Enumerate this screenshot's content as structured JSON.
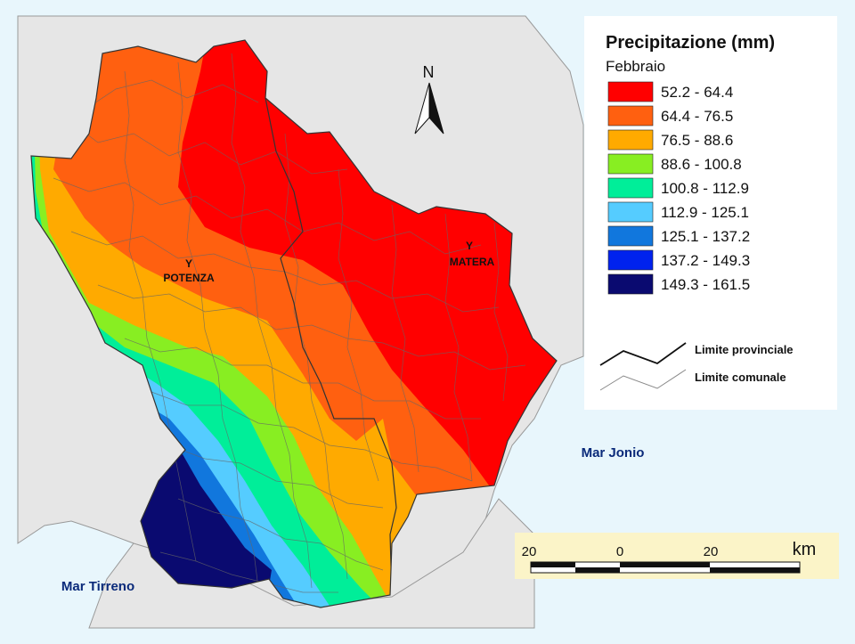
{
  "legend": {
    "title": "Precipitazione (mm)",
    "subtitle": "Febbraio",
    "classes": [
      {
        "label": "52.2 - 64.4",
        "color": "#ff0000"
      },
      {
        "label": "64.4 - 76.5",
        "color": "#ff6010"
      },
      {
        "label": "76.5 - 88.6",
        "color": "#ffaa00"
      },
      {
        "label": "88.6 - 100.8",
        "color": "#88ee22"
      },
      {
        "label": "100.8 - 112.9",
        "color": "#00ee99"
      },
      {
        "label": "112.9 - 125.1",
        "color": "#55ccff"
      },
      {
        "label": "125.1 - 137.2",
        "color": "#1177dd"
      },
      {
        "label": "137.2 - 149.3",
        "color": "#0022ee"
      },
      {
        "label": "149.3 - 161.5",
        "color": "#0a0a70"
      }
    ],
    "lines": {
      "provincial": "Limite provinciale",
      "municipal": "Limite comunale"
    }
  },
  "north_label": "N",
  "cities": {
    "potenza": "POTENZA",
    "matera": "MATERA"
  },
  "seas": {
    "ionian": "Mar Jonio",
    "tyrrhenian": "Mar Tirreno"
  },
  "scale_bar": {
    "labels": [
      "20",
      "0",
      "20"
    ],
    "unit": "km"
  },
  "colors": {
    "sea": "#e8f6fc",
    "land_outside": "#e6e6e6",
    "boundary": "#666666"
  }
}
